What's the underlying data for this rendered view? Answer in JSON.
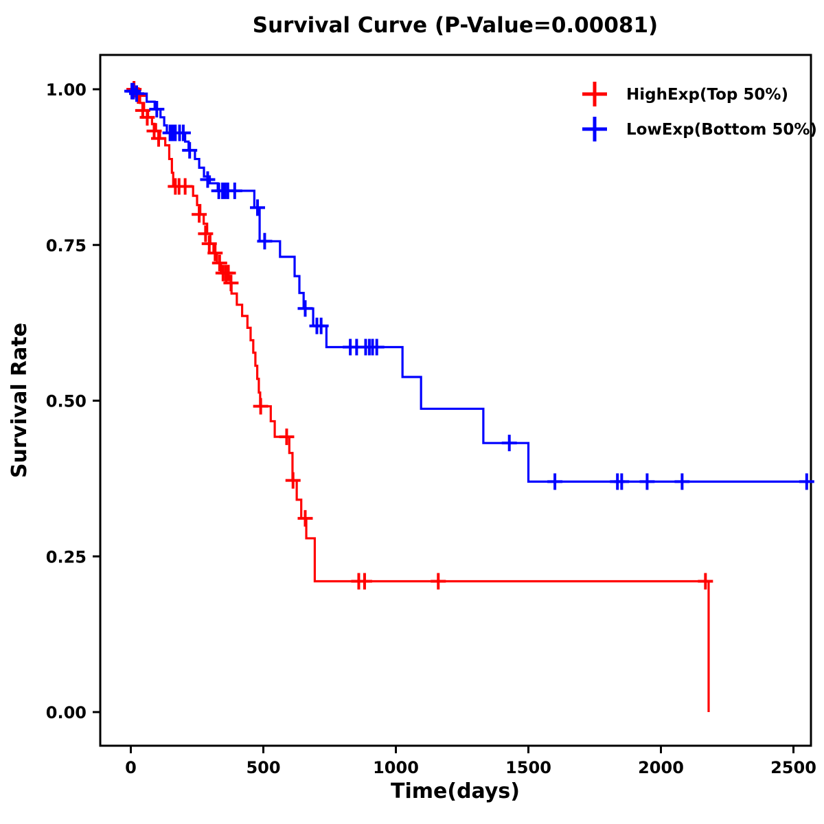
{
  "chart_data": {
    "type": "line",
    "subtype": "kaplan-meier-step",
    "title": "Survival Curve (P-Value=0.00081)",
    "p_value": "0.00081",
    "xlabel": "Time(days)",
    "ylabel": "Survival Rate",
    "xlim": [
      0,
      2600
    ],
    "ylim": [
      0.0,
      1.0
    ],
    "grid": false,
    "legend_position": "top-right-inside",
    "x_ticks": [
      {
        "v": 0,
        "label": "0"
      },
      {
        "v": 500,
        "label": "500"
      },
      {
        "v": 1000,
        "label": "1000"
      },
      {
        "v": 1500,
        "label": "1500"
      },
      {
        "v": 2000,
        "label": "2000"
      },
      {
        "v": 2500,
        "label": "2500"
      }
    ],
    "y_ticks": [
      {
        "v": 0.0,
        "label": "0.00"
      },
      {
        "v": 0.25,
        "label": "0.25"
      },
      {
        "v": 0.5,
        "label": "0.50"
      },
      {
        "v": 0.75,
        "label": "0.75"
      },
      {
        "v": 1.0,
        "label": "1.00"
      }
    ],
    "series": [
      {
        "name": "HighExp(Top 50%)",
        "key": "highexp",
        "color": "#FF0000",
        "steps": [
          [
            0,
            1.0
          ],
          [
            20,
            0.99
          ],
          [
            35,
            0.978
          ],
          [
            50,
            0.966
          ],
          [
            65,
            0.955
          ],
          [
            80,
            0.944
          ],
          [
            95,
            0.933
          ],
          [
            110,
            0.921
          ],
          [
            130,
            0.91
          ],
          [
            145,
            0.888
          ],
          [
            155,
            0.866
          ],
          [
            160,
            0.844
          ],
          [
            235,
            0.829
          ],
          [
            250,
            0.814
          ],
          [
            262,
            0.799
          ],
          [
            275,
            0.784
          ],
          [
            288,
            0.768
          ],
          [
            300,
            0.752
          ],
          [
            312,
            0.737
          ],
          [
            325,
            0.721
          ],
          [
            340,
            0.705
          ],
          [
            360,
            0.689
          ],
          [
            380,
            0.672
          ],
          [
            400,
            0.654
          ],
          [
            420,
            0.636
          ],
          [
            440,
            0.617
          ],
          [
            452,
            0.597
          ],
          [
            462,
            0.577
          ],
          [
            470,
            0.556
          ],
          [
            477,
            0.535
          ],
          [
            483,
            0.513
          ],
          [
            488,
            0.491
          ],
          [
            528,
            0.467
          ],
          [
            543,
            0.442
          ],
          [
            598,
            0.416
          ],
          [
            610,
            0.372
          ],
          [
            626,
            0.341
          ],
          [
            643,
            0.311
          ],
          [
            662,
            0.279
          ],
          [
            694,
            0.21
          ],
          [
            2180,
            0.21
          ],
          [
            2180,
            0.0
          ]
        ],
        "censors": [
          [
            12,
            1.0
          ],
          [
            28,
            0.99
          ],
          [
            45,
            0.966
          ],
          [
            62,
            0.955
          ],
          [
            88,
            0.933
          ],
          [
            105,
            0.921
          ],
          [
            168,
            0.844
          ],
          [
            182,
            0.844
          ],
          [
            205,
            0.844
          ],
          [
            258,
            0.799
          ],
          [
            282,
            0.768
          ],
          [
            296,
            0.752
          ],
          [
            318,
            0.737
          ],
          [
            335,
            0.721
          ],
          [
            348,
            0.705
          ],
          [
            358,
            0.705
          ],
          [
            368,
            0.705
          ],
          [
            378,
            0.689
          ],
          [
            490,
            0.491
          ],
          [
            588,
            0.442
          ],
          [
            612,
            0.372
          ],
          [
            658,
            0.311
          ],
          [
            860,
            0.21
          ],
          [
            882,
            0.21
          ],
          [
            1160,
            0.21
          ],
          [
            2168,
            0.21
          ]
        ]
      },
      {
        "name": "LowExp(Bottom 50%)",
        "key": "lowexp",
        "color": "#0000FF",
        "steps": [
          [
            0,
            1.0
          ],
          [
            15,
            0.993
          ],
          [
            60,
            0.98
          ],
          [
            90,
            0.968
          ],
          [
            112,
            0.955
          ],
          [
            126,
            0.942
          ],
          [
            136,
            0.93
          ],
          [
            205,
            0.916
          ],
          [
            218,
            0.902
          ],
          [
            242,
            0.888
          ],
          [
            258,
            0.874
          ],
          [
            276,
            0.86
          ],
          [
            298,
            0.849
          ],
          [
            328,
            0.837
          ],
          [
            466,
            0.81
          ],
          [
            486,
            0.756
          ],
          [
            563,
            0.731
          ],
          [
            618,
            0.7
          ],
          [
            636,
            0.673
          ],
          [
            652,
            0.648
          ],
          [
            688,
            0.62
          ],
          [
            738,
            0.586
          ],
          [
            1025,
            0.538
          ],
          [
            1095,
            0.487
          ],
          [
            1330,
            0.432
          ],
          [
            1500,
            0.37
          ],
          [
            2560,
            0.37
          ]
        ],
        "censors": [
          [
            4,
            0.997
          ],
          [
            10,
            0.997
          ],
          [
            22,
            0.993
          ],
          [
            98,
            0.968
          ],
          [
            148,
            0.93
          ],
          [
            158,
            0.93
          ],
          [
            168,
            0.93
          ],
          [
            184,
            0.93
          ],
          [
            198,
            0.93
          ],
          [
            222,
            0.902
          ],
          [
            290,
            0.855
          ],
          [
            332,
            0.837
          ],
          [
            346,
            0.837
          ],
          [
            356,
            0.837
          ],
          [
            366,
            0.837
          ],
          [
            392,
            0.837
          ],
          [
            478,
            0.81
          ],
          [
            505,
            0.756
          ],
          [
            658,
            0.648
          ],
          [
            702,
            0.62
          ],
          [
            718,
            0.62
          ],
          [
            828,
            0.586
          ],
          [
            852,
            0.586
          ],
          [
            886,
            0.586
          ],
          [
            900,
            0.586
          ],
          [
            912,
            0.586
          ],
          [
            928,
            0.586
          ],
          [
            1428,
            0.432
          ],
          [
            1600,
            0.37
          ],
          [
            1836,
            0.37
          ],
          [
            1852,
            0.37
          ],
          [
            1948,
            0.37
          ],
          [
            2080,
            0.37
          ],
          [
            2550,
            0.37
          ]
        ]
      }
    ]
  }
}
